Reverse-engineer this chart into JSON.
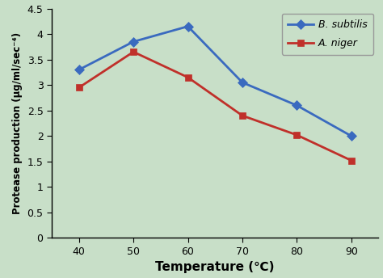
{
  "temperature": [
    40,
    50,
    60,
    70,
    80,
    90
  ],
  "b_subtilis": [
    3.3,
    3.85,
    4.15,
    3.05,
    2.6,
    2.0
  ],
  "a_niger": [
    2.95,
    3.65,
    3.15,
    2.4,
    2.02,
    1.52
  ],
  "b_subtilis_color": "#3a6abf",
  "a_niger_color": "#c0302a",
  "background_color": "#c8dfc8",
  "xlabel": "Temperature (℃)",
  "ylabel": "Protease production (μg/ml/sec⁻⁴)",
  "legend_b": "B. subtilis",
  "legend_a": "A. niger",
  "ylim": [
    0,
    4.5
  ],
  "ytick_labels": [
    "0",
    "0.5",
    "1",
    "1.5",
    "2",
    "2.5",
    "3",
    "3.5",
    "4",
    "4.5"
  ],
  "yticks": [
    0,
    0.5,
    1.0,
    1.5,
    2.0,
    2.5,
    3.0,
    3.5,
    4.0,
    4.5
  ],
  "xlim": [
    35,
    95
  ],
  "xticks": [
    40,
    50,
    60,
    70,
    80,
    90
  ]
}
